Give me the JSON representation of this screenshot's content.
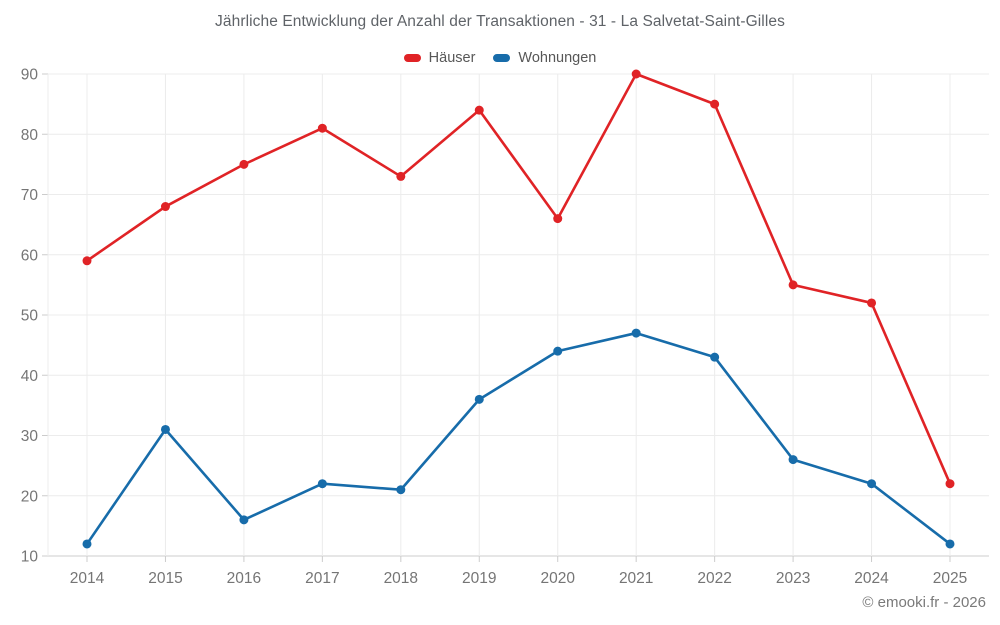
{
  "header": {
    "title": "Jährliche Entwicklung der Anzahl der Transaktionen - 31 - La Salvetat-Saint-Gilles"
  },
  "footer": {
    "credit": "© emooki.fr - 2026"
  },
  "colors": {
    "houses_red": "#e02326",
    "apartments_blue": "#176caa",
    "grid": "#ececec",
    "axis": "#cccccc",
    "tick_label": "#757575"
  },
  "chart_data": {
    "type": "line",
    "title": "Jährliche Entwicklung der Anzahl der Transaktionen - 31 - La Salvetat-Saint-Gilles",
    "categories": [
      "2014",
      "2015",
      "2016",
      "2017",
      "2018",
      "2019",
      "2020",
      "2021",
      "2022",
      "2023",
      "2024",
      "2025"
    ],
    "series": [
      {
        "name": "Häuser",
        "color": "#e02326",
        "values": [
          59,
          68,
          75,
          81,
          73,
          84,
          66,
          90,
          85,
          55,
          52,
          22
        ]
      },
      {
        "name": "Wohnungen",
        "color": "#176caa",
        "values": [
          12,
          31,
          16,
          22,
          21,
          36,
          44,
          47,
          43,
          26,
          22,
          12
        ]
      }
    ],
    "xlabel": "",
    "ylabel": "",
    "ylim": [
      10,
      90
    ],
    "yticks": [
      10,
      20,
      30,
      40,
      50,
      60,
      70,
      80,
      90
    ],
    "grid": true,
    "legend_position": "top"
  }
}
